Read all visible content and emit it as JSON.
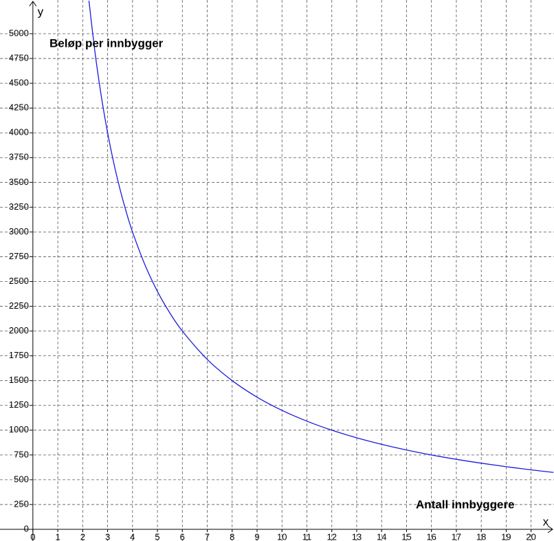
{
  "chart_data": {
    "type": "line",
    "x_label": "x",
    "y_label": "y",
    "annotations": [
      "Beløp per innbygger",
      "Antall innbyggere"
    ],
    "x": [
      2.25,
      2.5,
      2.75,
      3,
      3.25,
      3.5,
      3.75,
      4,
      4.5,
      5,
      5.5,
      6,
      7,
      8,
      9,
      10,
      11,
      12,
      13,
      14,
      15,
      16,
      17,
      18,
      19,
      20,
      20.9
    ],
    "series": [
      {
        "color": "#1a1adc",
        "values": [
          5333,
          4800,
          4364,
          4000,
          3692,
          3429,
          3200,
          3000,
          2667,
          2400,
          2182,
          2000,
          1714,
          1500,
          1333,
          1200,
          1091,
          1000,
          923,
          857,
          800,
          750,
          706,
          667,
          632,
          600,
          574
        ]
      }
    ],
    "xlim": [
      -1.32,
      20.92
    ],
    "ylim": [
      -118,
      5340
    ],
    "xticks": [
      0,
      1,
      2,
      3,
      4,
      5,
      6,
      7,
      8,
      9,
      10,
      11,
      12,
      13,
      14,
      15,
      16,
      17,
      18,
      19,
      20
    ],
    "yticks": [
      0,
      250,
      500,
      750,
      1000,
      1250,
      1500,
      1750,
      2000,
      2250,
      2500,
      2750,
      3000,
      3250,
      3500,
      3750,
      4000,
      4250,
      4500,
      4750,
      5000
    ],
    "grid": true
  }
}
